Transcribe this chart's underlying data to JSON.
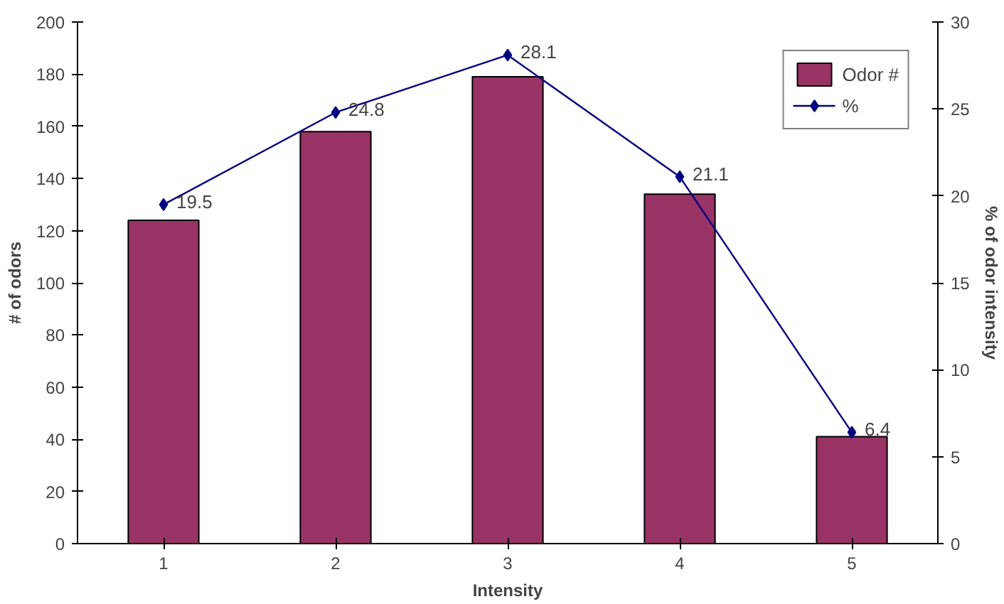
{
  "chart_data": {
    "type": "bar",
    "xlabel": "Intensity",
    "ylabel": "# of odors",
    "y2label": "% of odor intensity",
    "categories": [
      "1",
      "2",
      "3",
      "4",
      "5"
    ],
    "series": [
      {
        "name": "Odor #",
        "color": "#993366",
        "values": [
          124,
          158,
          179,
          134,
          41
        ]
      },
      {
        "name": "%",
        "type": "line",
        "color": "#000080",
        "axis": "y2",
        "marker": "diamond",
        "values": [
          19.5,
          24.8,
          28.1,
          21.1,
          6.4
        ],
        "value_labels": [
          "19.5",
          "24.8",
          "28.1",
          "21.1",
          "6.4"
        ]
      }
    ],
    "ylim": [
      0,
      200
    ],
    "yticks": [
      0,
      20,
      40,
      60,
      80,
      100,
      120,
      140,
      160,
      180,
      200
    ],
    "y2lim": [
      0,
      30
    ],
    "y2ticks": [
      0,
      5,
      10,
      15,
      20,
      25,
      30
    ],
    "grid": false,
    "legend": "top right"
  }
}
